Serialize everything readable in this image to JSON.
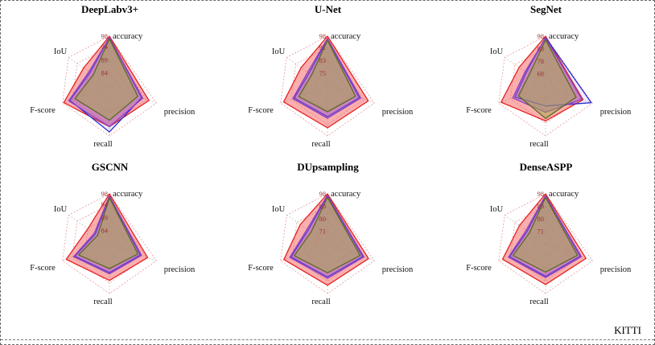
{
  "figure": {
    "dataset_label": "KITTI"
  },
  "radar_layout": {
    "axis_angles_deg": [
      90,
      145,
      200,
      270,
      340
    ],
    "legend": "none"
  },
  "colors": {
    "grid": "#e59a9a",
    "spoke": "#bdbdbd",
    "tick_text": "#993333",
    "red": {
      "stroke": "#e62222",
      "fill": "rgba(246,96,96,0.50)"
    },
    "blue": {
      "stroke": "#2b2bd0",
      "fill": "rgba(80,80,230,0.10)"
    },
    "violet": {
      "stroke": "#8f3fbf",
      "fill": "rgba(170,90,200,0.45)"
    },
    "green": {
      "stroke": "#5a6b22",
      "fill": "rgba(160,170,70,0.50)"
    }
  },
  "chart_data": [
    {
      "type": "radar",
      "title": "DeepLabv3+",
      "axes": [
        "accuracy",
        "IoU",
        "F-score",
        "recall",
        "precision"
      ],
      "tick_values": [
        84,
        89,
        94,
        98
      ],
      "scale_min": 79,
      "scale_max": 98,
      "series": [
        {
          "name": "red",
          "values": [
            98,
            91,
            97.5,
            94.5,
            95
          ]
        },
        {
          "name": "blue",
          "values": [
            97.5,
            88,
            95,
            96.5,
            92
          ]
        },
        {
          "name": "violet",
          "values": [
            97.5,
            88.5,
            95.5,
            94.5,
            92.5
          ]
        },
        {
          "name": "green",
          "values": [
            97,
            86.5,
            93,
            92,
            90.5
          ]
        }
      ]
    },
    {
      "type": "radar",
      "title": "U-Net",
      "axes": [
        "accuracy",
        "IoU",
        "F-score",
        "recall",
        "precision"
      ],
      "tick_values": [
        75,
        83,
        91,
        98
      ],
      "scale_min": 67,
      "scale_max": 98,
      "series": [
        {
          "name": "red",
          "values": [
            98,
            87,
            96,
            93,
            94
          ]
        },
        {
          "name": "blue",
          "values": [
            96,
            81,
            89,
            86,
            88
          ]
        },
        {
          "name": "violet",
          "values": [
            96.5,
            82,
            90,
            87,
            89
          ]
        },
        {
          "name": "green",
          "values": [
            95.5,
            79,
            86,
            83,
            85.5
          ]
        }
      ]
    },
    {
      "type": "radar",
      "title": "SegNet",
      "axes": [
        "accuracy",
        "IoU",
        "F-score",
        "recall",
        "precision"
      ],
      "tick_values": [
        68,
        78,
        88,
        98
      ],
      "scale_min": 58,
      "scale_max": 98,
      "series": [
        {
          "name": "red",
          "values": [
            98,
            84,
            96,
            86,
            90
          ]
        },
        {
          "name": "blue",
          "values": [
            97,
            77,
            84,
            74,
            97
          ]
        },
        {
          "name": "violet",
          "values": [
            96.5,
            78,
            86,
            79,
            89
          ]
        },
        {
          "name": "green",
          "values": [
            95,
            74,
            81,
            84,
            84
          ]
        }
      ]
    },
    {
      "type": "radar",
      "title": "GSCNN",
      "axes": [
        "accuracy",
        "IoU",
        "F-score",
        "recall",
        "precision"
      ],
      "tick_values": [
        84,
        89,
        94,
        98
      ],
      "scale_min": 79,
      "scale_max": 98,
      "series": [
        {
          "name": "red",
          "values": [
            98,
            89,
            96.5,
            93,
            94.5
          ]
        },
        {
          "name": "blue",
          "values": [
            97,
            85.5,
            93,
            90,
            91.5
          ]
        },
        {
          "name": "violet",
          "values": [
            97.2,
            86,
            93.5,
            90.5,
            92
          ]
        },
        {
          "name": "green",
          "values": [
            96.5,
            84.5,
            91.5,
            88.5,
            90.5
          ]
        }
      ]
    },
    {
      "type": "radar",
      "title": "DUpsampling",
      "axes": [
        "accuracy",
        "IoU",
        "F-score",
        "recall",
        "precision"
      ],
      "tick_values": [
        71,
        80,
        89,
        98
      ],
      "scale_min": 62,
      "scale_max": 98,
      "series": [
        {
          "name": "red",
          "values": [
            98,
            86,
            95.5,
            92,
            93.5
          ]
        },
        {
          "name": "blue",
          "values": [
            96.5,
            79,
            90,
            86,
            89
          ]
        },
        {
          "name": "violet",
          "values": [
            97,
            80,
            91,
            87,
            90
          ]
        },
        {
          "name": "green",
          "values": [
            95.5,
            76.5,
            87.5,
            83,
            87
          ]
        }
      ]
    },
    {
      "type": "radar",
      "title": "DenseASPP",
      "axes": [
        "accuracy",
        "IoU",
        "F-score",
        "recall",
        "precision"
      ],
      "tick_values": [
        71,
        80,
        89,
        98
      ],
      "scale_min": 62,
      "scale_max": 98,
      "series": [
        {
          "name": "red",
          "values": [
            98,
            85,
            95,
            91.5,
            93
          ]
        },
        {
          "name": "blue",
          "values": [
            96.5,
            78,
            89.5,
            85.5,
            88.5
          ]
        },
        {
          "name": "violet",
          "values": [
            96.8,
            79,
            90.5,
            86.5,
            89.5
          ]
        },
        {
          "name": "green",
          "values": [
            95.5,
            76,
            87,
            82.5,
            86.5
          ]
        }
      ]
    }
  ]
}
